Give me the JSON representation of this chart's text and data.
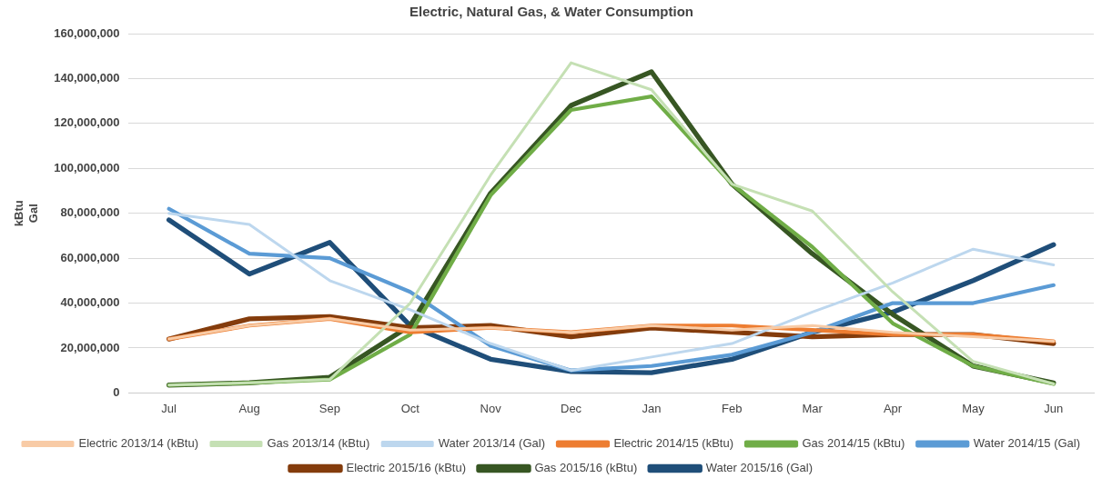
{
  "chart_data": {
    "type": "line",
    "title": "Electric, Natural Gas, & Water Consumption",
    "ylabel": "kBtu\nGal",
    "categories": [
      "Jul",
      "Aug",
      "Sep",
      "Oct",
      "Nov",
      "Dec",
      "Jan",
      "Feb",
      "Mar",
      "Apr",
      "May",
      "Jun"
    ],
    "series": [
      {
        "name": "Electric 2013/14 (kBtu)",
        "color": "#f8cba6",
        "values": [
          24000000,
          30000000,
          33000000,
          28000000,
          29000000,
          27000000,
          30000000,
          28000000,
          30000000,
          27000000,
          25000000,
          23000000
        ]
      },
      {
        "name": "Gas 2013/14 (kBtu)",
        "color": "#c5e0b4",
        "values": [
          3500000,
          4500000,
          6000000,
          40000000,
          97000000,
          147000000,
          135000000,
          93000000,
          81000000,
          45000000,
          14000000,
          4000000
        ]
      },
      {
        "name": "Water 2013/14 (Gal)",
        "color": "#bdd7ee",
        "values": [
          80000000,
          75000000,
          50000000,
          37000000,
          22000000,
          10000000,
          16000000,
          22000000,
          36000000,
          49000000,
          64000000,
          57000000
        ]
      },
      {
        "name": "Electric 2014/15 (kBtu)",
        "color": "#ed7d31",
        "values": [
          24000000,
          30000000,
          33000000,
          27000000,
          29000000,
          27000000,
          30000000,
          30000000,
          28000000,
          26000000,
          26000000,
          23000000
        ]
      },
      {
        "name": "Gas 2014/15 (kBtu)",
        "color": "#70ad47",
        "values": [
          3500000,
          4500000,
          6000000,
          26000000,
          88000000,
          126000000,
          132000000,
          93000000,
          65000000,
          31000000,
          12000000,
          4000000
        ]
      },
      {
        "name": "Water 2014/15 (Gal)",
        "color": "#5b9bd5",
        "values": [
          82000000,
          62000000,
          60000000,
          45000000,
          21000000,
          10000000,
          12000000,
          17000000,
          27000000,
          40000000,
          40000000,
          48000000
        ]
      },
      {
        "name": "Electric 2015/16 (kBtu)",
        "color": "#843c0c",
        "values": [
          24000000,
          33000000,
          34000000,
          29000000,
          30000000,
          25000000,
          29000000,
          27000000,
          25000000,
          26000000,
          26000000,
          22000000
        ]
      },
      {
        "name": "Gas 2015/16 (kBtu)",
        "color": "#375623",
        "values": [
          3500000,
          4500000,
          7000000,
          30000000,
          89000000,
          128000000,
          143000000,
          93000000,
          62000000,
          35000000,
          12000000,
          4500000
        ]
      },
      {
        "name": "Water 2015/16 (Gal)",
        "color": "#1f4e79",
        "values": [
          77000000,
          53000000,
          67000000,
          30000000,
          15000000,
          9500000,
          9000000,
          15000000,
          27000000,
          36000000,
          50000000,
          66000000
        ]
      }
    ],
    "ylim": [
      0,
      160000000
    ],
    "yticks": [
      {
        "value": 0,
        "label": "0"
      },
      {
        "value": 20000000,
        "label": "20,000,000"
      },
      {
        "value": 40000000,
        "label": "40,000,000"
      },
      {
        "value": 60000000,
        "label": "60,000,000"
      },
      {
        "value": 80000000,
        "label": "80,000,000"
      },
      {
        "value": 100000000,
        "label": "100,000,000"
      },
      {
        "value": 120000000,
        "label": "120,000,000"
      },
      {
        "value": 140000000,
        "label": "140,000,000"
      },
      {
        "value": 160000000,
        "label": "160,000,000"
      }
    ],
    "grid": "y",
    "legend": "bottom",
    "marker": "none",
    "line_style": "solid"
  }
}
